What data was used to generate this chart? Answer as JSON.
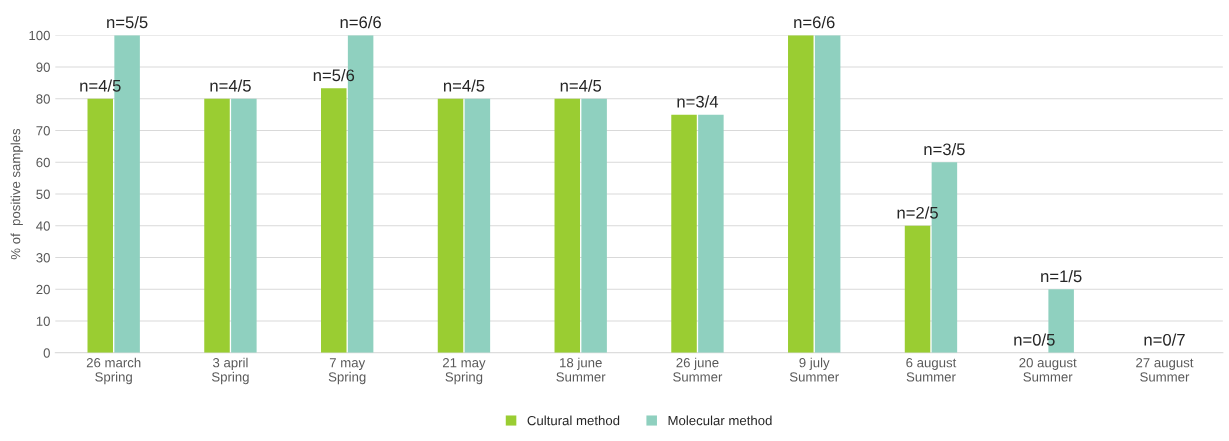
{
  "chart_data": {
    "type": "bar",
    "ylabel": "% of  positive samples",
    "categories": [
      "26 march\nSpring",
      "3 april\nSpring",
      "7 may\nSpring",
      "21 may\nSpring",
      "18 june\nSummer",
      "26 june\nSummer",
      "9 july\nSummer",
      "6 august\nSummer",
      "20 august\nSummer",
      "27 august\nSummer"
    ],
    "series": [
      {
        "name": "Cultural method",
        "color": "#9acd32",
        "values": [
          80,
          80,
          83.3,
          80,
          80,
          75,
          100,
          40,
          0,
          0
        ],
        "value_labels": [
          "n=4/5",
          "n=4/5",
          "n=5/6",
          "n=4/5",
          "n=4/5",
          "n=3/4",
          "n=6/6",
          "n=2/5",
          "n=0/5",
          "n=0/7"
        ]
      },
      {
        "name": "Molecular method",
        "color": "#8fd0bf",
        "values": [
          100,
          80,
          100,
          80,
          80,
          75,
          100,
          60,
          20,
          0
        ],
        "value_labels": [
          "n=5/5",
          null,
          "n=6/6",
          null,
          null,
          null,
          null,
          "n=3/5",
          "n=1/5",
          null
        ]
      }
    ],
    "ylim": [
      0,
      100
    ],
    "yticks": [
      0,
      10,
      20,
      30,
      40,
      50,
      60,
      70,
      80,
      90,
      100
    ],
    "grid": "y",
    "legend": "bottom"
  }
}
